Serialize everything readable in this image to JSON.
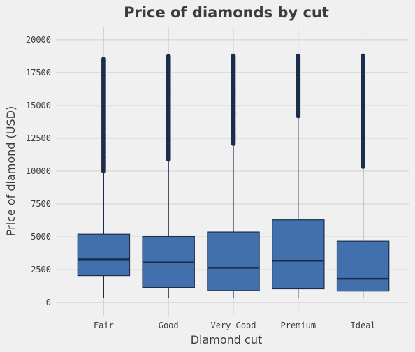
{
  "chart_data": {
    "type": "box",
    "title": "Price of diamonds by cut",
    "xlabel": "Diamond cut",
    "ylabel": "Price of diamond (USD)",
    "ylim": [
      -1000,
      21000
    ],
    "yticks": [
      0,
      2500,
      5000,
      7500,
      10000,
      12500,
      15000,
      17500,
      20000
    ],
    "grid": true,
    "categories": [
      "Fair",
      "Good",
      "Very Good",
      "Premium",
      "Ideal"
    ],
    "boxes": [
      {
        "category": "Fair",
        "min": 337,
        "q1": 2050,
        "median": 3282,
        "q3": 5206,
        "whisker_high": 9950,
        "outliers_from": 10000,
        "outliers_to": 18574
      },
      {
        "category": "Good",
        "min": 327,
        "q1": 1145,
        "median": 3050,
        "q3": 5028,
        "whisker_high": 10850,
        "outliers_from": 10900,
        "outliers_to": 18788
      },
      {
        "category": "Very Good",
        "min": 336,
        "q1": 912,
        "median": 2648,
        "q3": 5373,
        "whisker_high": 12050,
        "outliers_from": 12100,
        "outliers_to": 18818
      },
      {
        "category": "Premium",
        "min": 326,
        "q1": 1046,
        "median": 3185,
        "q3": 6296,
        "whisker_high": 14150,
        "outliers_from": 14200,
        "outliers_to": 18823
      },
      {
        "category": "Ideal",
        "min": 326,
        "q1": 878,
        "median": 1810,
        "q3": 4678,
        "whisker_high": 10300,
        "outliers_from": 10350,
        "outliers_to": 18806
      }
    ],
    "colors": {
      "box_fill": "#4270ad",
      "box_edge": "#1c2d4b",
      "median": "#1c2d4b",
      "outlier": "#1c2d4b",
      "background": "#f0f0f0",
      "grid": "#d0d0d0"
    }
  }
}
